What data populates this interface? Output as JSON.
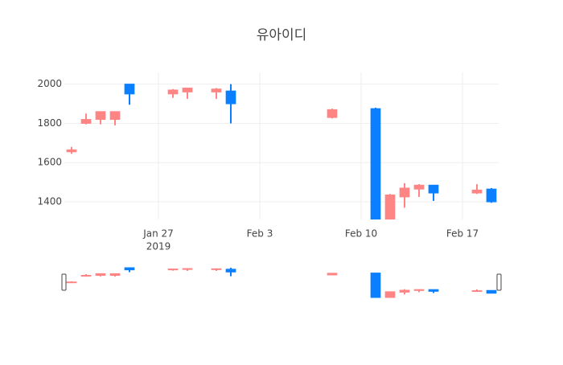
{
  "chart_data": {
    "type": "candlestick",
    "title": "유아이디",
    "x": [
      "2019-01-21",
      "2019-01-22",
      "2019-01-23",
      "2019-01-24",
      "2019-01-25",
      "2019-01-28",
      "2019-01-29",
      "2019-01-31",
      "2019-02-01",
      "2019-02-08",
      "2019-02-11",
      "2019-02-12",
      "2019-02-13",
      "2019-02-14",
      "2019-02-15",
      "2019-02-18",
      "2019-02-19"
    ],
    "open": [
      1655,
      1800,
      1820,
      1820,
      2000,
      1950,
      1960,
      1960,
      1965,
      1830,
      1875,
      1300,
      1425,
      1465,
      1485,
      1445,
      1465
    ],
    "high": [
      1680,
      1850,
      1860,
      1860,
      2000,
      1975,
      1980,
      1980,
      2000,
      1875,
      1880,
      1440,
      1495,
      1490,
      1485,
      1490,
      1470
    ],
    "low": [
      1645,
      1795,
      1795,
      1790,
      1895,
      1930,
      1925,
      1925,
      1800,
      1825,
      1300,
      1300,
      1370,
      1425,
      1405,
      1440,
      1395
    ],
    "close": [
      1665,
      1820,
      1860,
      1860,
      1950,
      1970,
      1980,
      1975,
      1900,
      1870,
      1300,
      1435,
      1470,
      1485,
      1445,
      1460,
      1400
    ],
    "increasing_color": "#ff8585",
    "decreasing_color": "#0a7fff",
    "xlim": [
      "2019-01-20T12:00",
      "2019-02-19T12:00"
    ],
    "xticks": [
      {
        "value": "2019-01-27",
        "label": "Jan 27"
      },
      {
        "value": "2019-02-03",
        "label": "Feb 3"
      },
      {
        "value": "2019-02-10",
        "label": "Feb 10"
      },
      {
        "value": "2019-02-17",
        "label": "Feb 17"
      }
    ],
    "xtick_year": "2019",
    "ylim": [
      1310,
      2060
    ],
    "yticks": [
      1400,
      1600,
      1800,
      2000
    ],
    "grid": true,
    "rangeslider": true
  }
}
